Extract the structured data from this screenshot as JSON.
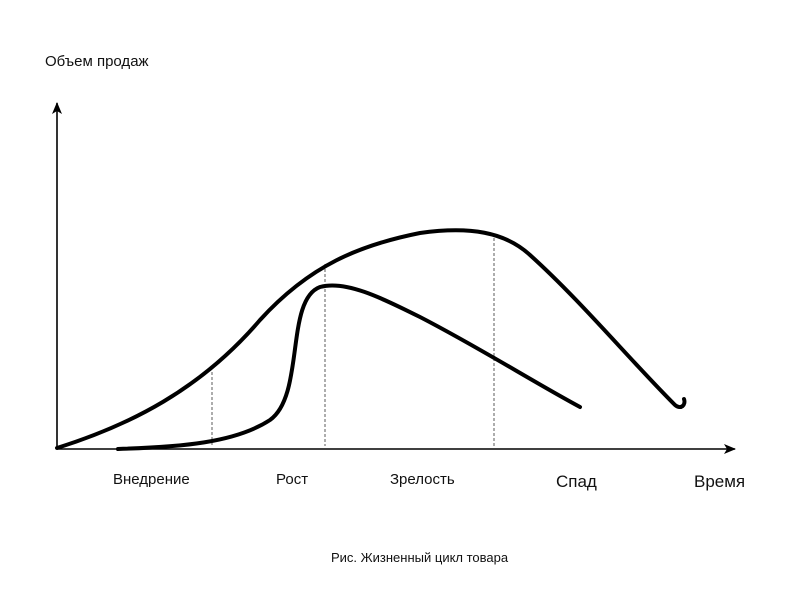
{
  "diagram": {
    "y_axis_label": "Объем продаж",
    "x_axis_label": "Время",
    "stages": [
      {
        "label": "Внедрение"
      },
      {
        "label": "Рост"
      },
      {
        "label": "Зрелость"
      },
      {
        "label": "Спад"
      }
    ],
    "caption": "Рис. Жизненный цикл товара",
    "colors": {
      "line": "#000000",
      "text": "#111111",
      "background": "#ffffff"
    }
  }
}
